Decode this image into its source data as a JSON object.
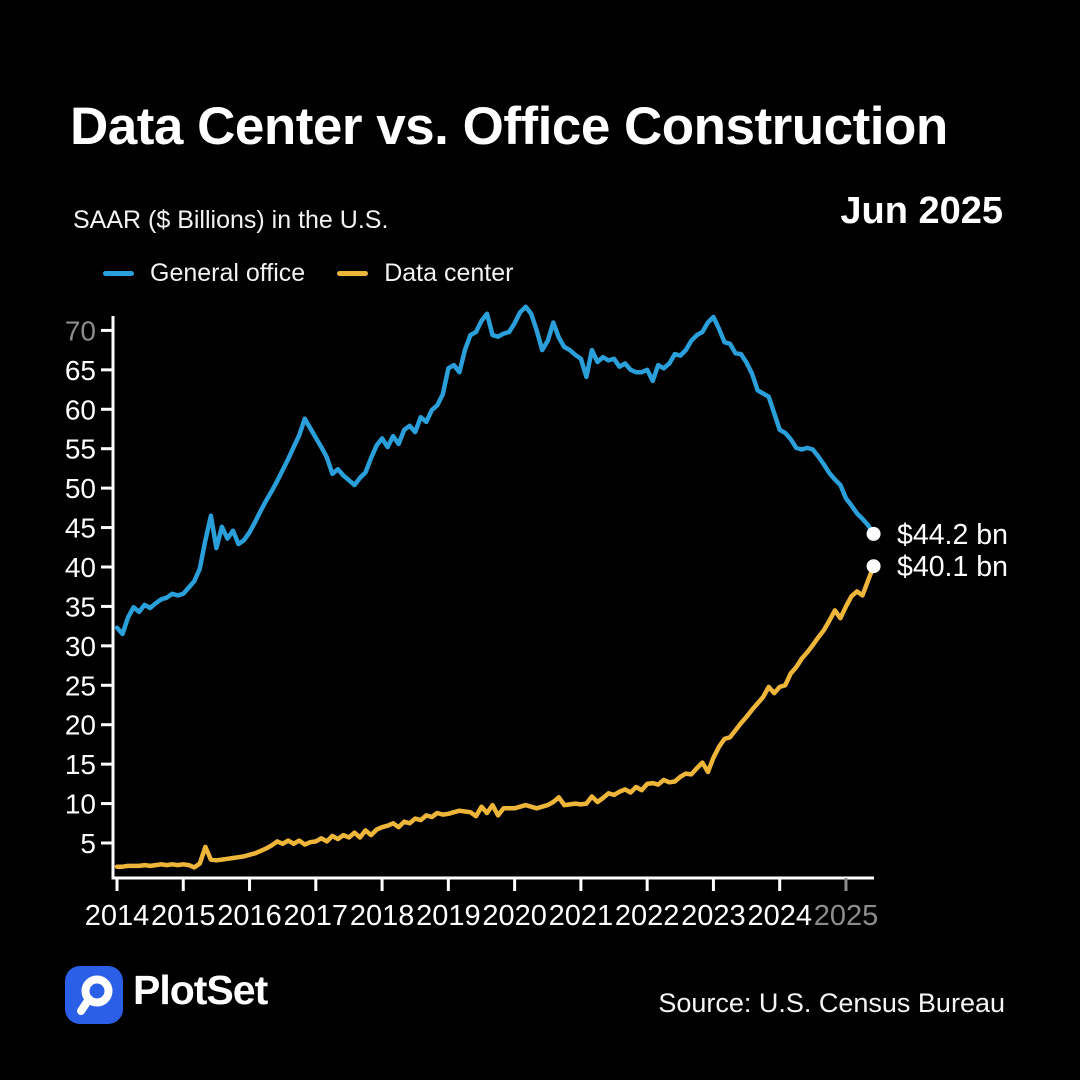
{
  "header": {
    "title": "Data Center vs. Office Construction",
    "subtitle": "SAAR ($ Billions) in the U.S.",
    "date_label": "Jun 2025"
  },
  "legend": [
    {
      "label": "General office",
      "color": "#2B9FD9"
    },
    {
      "label": "Data center",
      "color": "#EEB53B"
    }
  ],
  "colors": {
    "background": "#000000",
    "axis": "#FFFFFF",
    "tick_label": "#FFFFFF",
    "muted_label": "#8C8C8C",
    "end_dot": "#FFFFFF",
    "end_label": "#FFFFFF",
    "logo_blue": "#2B5FE8"
  },
  "chart_data": {
    "type": "line",
    "title": "Data Center vs. Office Construction",
    "subtitle": "SAAR ($ Billions) in the U.S.",
    "x_unit": "month",
    "x_start": "2014-01",
    "x_end": "2025-06",
    "x_tick_labels": [
      "2014",
      "2015",
      "2016",
      "2017",
      "2018",
      "2019",
      "2020",
      "2021",
      "2022",
      "2023",
      "2024",
      "2025"
    ],
    "muted_x_tick_labels": [
      "2025"
    ],
    "y_ticks": [
      5,
      10,
      15,
      20,
      25,
      30,
      35,
      40,
      45,
      50,
      55,
      60,
      65,
      70
    ],
    "muted_y_tick_labels": [
      "70"
    ],
    "ylim": [
      0.5,
      73.5
    ],
    "grid": false,
    "legend_position": "top-left",
    "series": [
      {
        "name": "General office",
        "color": "#2B9FD9",
        "end_label": "$44.2 bn",
        "end_value": 44.2,
        "values": [
          32.3,
          31.5,
          33.6,
          34.9,
          34.3,
          35.2,
          34.8,
          35.4,
          35.9,
          36.1,
          36.6,
          36.4,
          36.6,
          37.4,
          38.2,
          39.8,
          43.4,
          46.5,
          42.4,
          45.1,
          43.6,
          44.6,
          42.9,
          43.4,
          44.4,
          45.7,
          47.1,
          48.4,
          49.6,
          50.9,
          52.3,
          53.7,
          55.2,
          56.7,
          58.8,
          57.6,
          56.4,
          55.2,
          53.9,
          51.8,
          52.4,
          51.6,
          51.0,
          50.4,
          51.3,
          52.0,
          53.8,
          55.4,
          56.3,
          55.2,
          56.6,
          55.6,
          57.4,
          57.9,
          57.1,
          59.0,
          58.4,
          59.9,
          60.5,
          61.9,
          65.2,
          65.6,
          64.7,
          67.5,
          69.4,
          69.8,
          71.2,
          72.1,
          69.4,
          69.2,
          69.6,
          69.8,
          70.9,
          72.3,
          73.0,
          72.1,
          70.0,
          67.5,
          68.7,
          71.0,
          69.1,
          67.9,
          67.5,
          66.9,
          66.4,
          64.1,
          67.5,
          66.0,
          66.6,
          66.2,
          66.4,
          65.4,
          65.8,
          65.0,
          64.7,
          64.7,
          65.0,
          63.6,
          65.6,
          65.2,
          65.8,
          67.0,
          66.8,
          67.5,
          68.7,
          69.4,
          69.8,
          71.0,
          71.7,
          70.2,
          68.5,
          68.3,
          67.1,
          67.0,
          65.9,
          64.5,
          62.4,
          62.0,
          61.6,
          59.5,
          57.4,
          57.0,
          56.2,
          55.1,
          54.9,
          55.1,
          54.9,
          54.0,
          53.0,
          51.9,
          51.1,
          50.4,
          48.7,
          47.8,
          46.8,
          46.1,
          45.3,
          44.2
        ]
      },
      {
        "name": "Data center",
        "color": "#EEB53B",
        "end_label": "$40.1 bn",
        "end_value": 40.1,
        "values": [
          2.0,
          2.0,
          2.1,
          2.1,
          2.1,
          2.2,
          2.1,
          2.2,
          2.3,
          2.2,
          2.3,
          2.2,
          2.3,
          2.2,
          1.9,
          2.4,
          4.5,
          2.9,
          2.8,
          2.9,
          3.0,
          3.1,
          3.2,
          3.3,
          3.5,
          3.7,
          4.0,
          4.3,
          4.7,
          5.2,
          4.9,
          5.3,
          4.9,
          5.3,
          4.8,
          5.1,
          5.2,
          5.6,
          5.2,
          5.9,
          5.5,
          6.0,
          5.7,
          6.3,
          5.7,
          6.6,
          6.0,
          6.7,
          7.0,
          7.2,
          7.5,
          7.0,
          7.7,
          7.5,
          8.1,
          7.9,
          8.5,
          8.3,
          8.8,
          8.6,
          8.7,
          8.9,
          9.1,
          9.0,
          8.9,
          8.4,
          9.6,
          8.8,
          9.8,
          8.5,
          9.4,
          9.4,
          9.4,
          9.6,
          9.8,
          9.6,
          9.4,
          9.6,
          9.8,
          10.2,
          10.8,
          9.8,
          9.9,
          10.0,
          9.9,
          10.0,
          10.9,
          10.2,
          10.7,
          11.3,
          11.1,
          11.5,
          11.8,
          11.4,
          12.1,
          11.7,
          12.5,
          12.6,
          12.4,
          13.0,
          12.7,
          12.8,
          13.4,
          13.8,
          13.7,
          14.5,
          15.2,
          14.0,
          15.8,
          17.2,
          18.2,
          18.4,
          19.3,
          20.2,
          21.0,
          21.9,
          22.7,
          23.5,
          24.8,
          24.0,
          24.8,
          25.0,
          26.5,
          27.3,
          28.4,
          29.2,
          30.1,
          31.1,
          32.0,
          33.2,
          34.5,
          33.5,
          35.0,
          36.3,
          36.9,
          36.4,
          38.3,
          40.1
        ]
      }
    ]
  },
  "footer": {
    "brand": "PlotSet",
    "source": "Source: U.S. Census Bureau"
  }
}
